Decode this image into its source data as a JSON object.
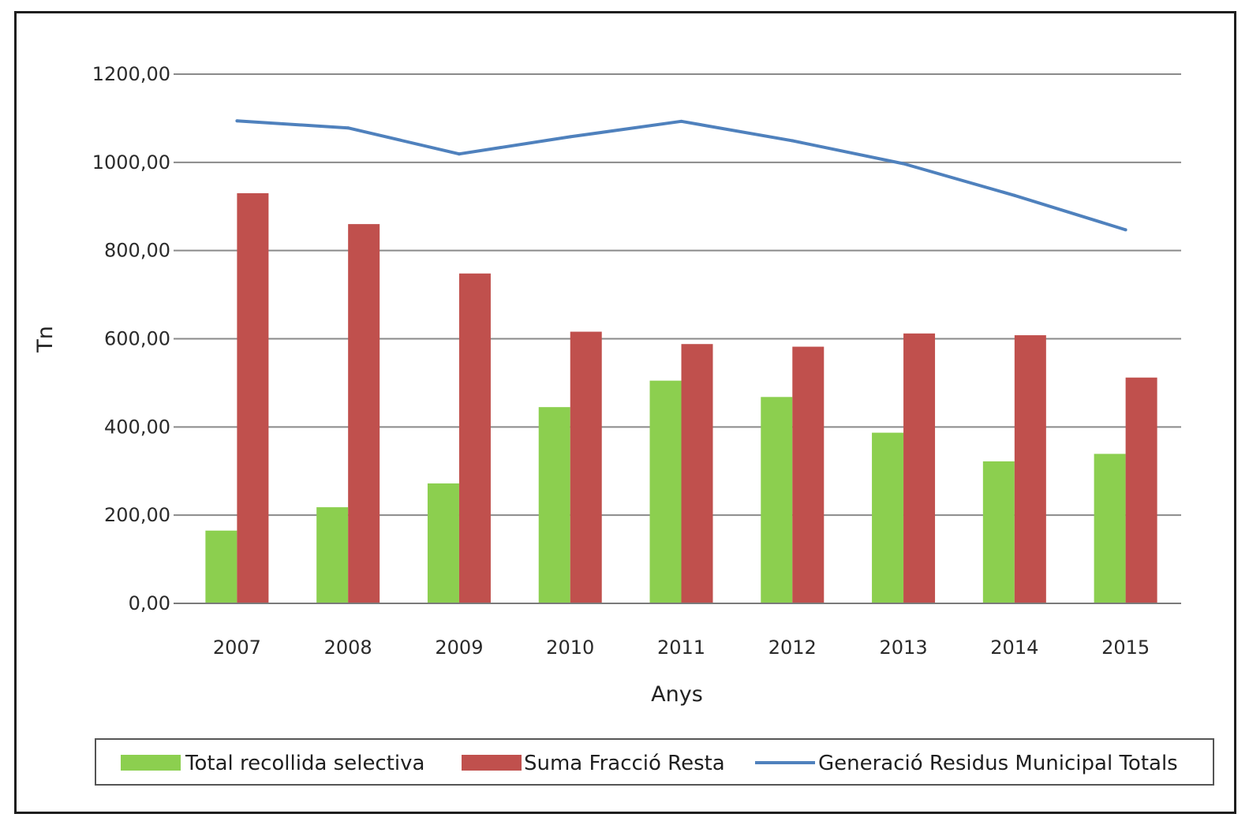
{
  "chart_data": {
    "type": "bar",
    "title": "",
    "xlabel": "Anys",
    "ylabel": "Tn",
    "categories": [
      "2007",
      "2008",
      "2009",
      "2010",
      "2011",
      "2012",
      "2013",
      "2014",
      "2015"
    ],
    "ylim": [
      0,
      1200
    ],
    "yticks": [
      "0,00",
      "200,00",
      "400,00",
      "600,00",
      "800,00",
      "1000,00",
      "1200,00"
    ],
    "grid": true,
    "legend_position": "bottom",
    "series": [
      {
        "name": "Total recollida selectiva",
        "kind": "bar",
        "color": "#8ccf4f",
        "values": [
          165,
          218,
          272,
          445,
          505,
          468,
          387,
          322,
          339
        ]
      },
      {
        "name": "Suma Fracció Resta",
        "kind": "bar",
        "color": "#c0504d",
        "values": [
          930,
          860,
          748,
          616,
          588,
          582,
          612,
          608,
          512
        ]
      },
      {
        "name": "Generació Residus Municipal Totals",
        "kind": "line",
        "color": "#4f81bd",
        "values": [
          1094,
          1078,
          1019,
          1058,
          1093,
          1049,
          997,
          925,
          847
        ]
      }
    ]
  }
}
